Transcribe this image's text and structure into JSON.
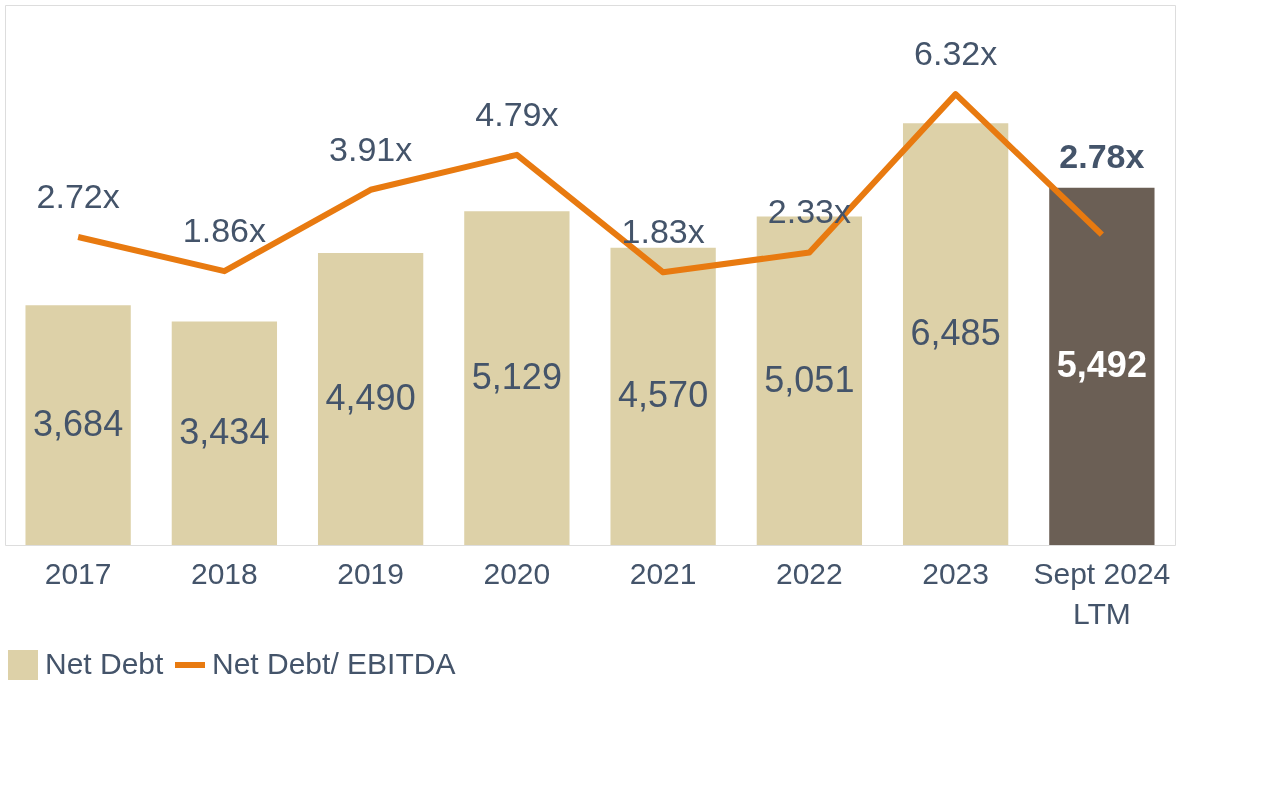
{
  "chart_data": {
    "type": "bar",
    "categories": [
      "2017",
      "2018",
      "2019",
      "2020",
      "2021",
      "2022",
      "2023",
      "Sept 2024\nLTM"
    ],
    "series": [
      {
        "name": "Net Debt",
        "color": "#ddd1a8",
        "colors": [
          "#ddd1a8",
          "#ddd1a8",
          "#ddd1a8",
          "#ddd1a8",
          "#ddd1a8",
          "#ddd1a8",
          "#ddd1a8",
          "#6b5f55"
        ],
        "values": [
          3684,
          3434,
          4490,
          5129,
          4570,
          5051,
          6485,
          5492
        ],
        "value_labels": [
          "3,684",
          "3,434",
          "4,490",
          "5,129",
          "4,570",
          "5,051",
          "6,485",
          "5,492"
        ]
      },
      {
        "name": "Net Debt/ EBITDA",
        "type": "line",
        "axis": "y2",
        "color": "#e87a10",
        "values": [
          2.72,
          1.86,
          3.91,
          4.79,
          1.83,
          2.33,
          6.32,
          2.78
        ],
        "value_labels": [
          "2.72x",
          "1.86x",
          "3.91x",
          "4.79x",
          "1.83x",
          "2.33x",
          "6.32x",
          "2.78x"
        ]
      }
    ],
    "data_labels": true,
    "legend": "bottom"
  }
}
